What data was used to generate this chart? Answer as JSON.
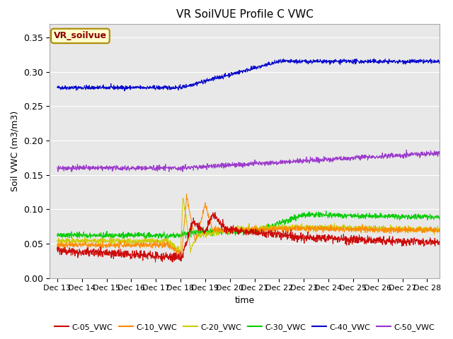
{
  "title": "VR SoilVUE Profile C VWC",
  "xlabel": "time",
  "ylabel": "Soil VWC (m3/m3)",
  "ylim": [
    0.0,
    0.37
  ],
  "yticks": [
    0.0,
    0.05,
    0.1,
    0.15,
    0.2,
    0.25,
    0.3,
    0.35
  ],
  "fig_bg_color": "#ffffff",
  "plot_bg_color": "#e8e8e8",
  "grid_color": "#ffffff",
  "legend_box_color": "#ffffcc",
  "legend_box_text": "VR_soilvue",
  "legend_box_text_color": "#8b0000",
  "legend_box_edge_color": "#aa8800",
  "series_colors": {
    "C-05_VWC": "#cc0000",
    "C-10_VWC": "#ff8800",
    "C-20_VWC": "#cccc00",
    "C-30_VWC": "#00cc00",
    "C-40_VWC": "#0000cc",
    "C-50_VWC": "#9933cc"
  },
  "xtick_labels": [
    "Dec 13",
    "Dec 14",
    "Dec 15",
    "Dec 16",
    "Dec 17",
    "Dec 18",
    "Dec 19",
    "Dec 20",
    "Dec 21",
    "Dec 22",
    "Dec 23",
    "Dec 24",
    "Dec 25",
    "Dec 26",
    "Dec 27",
    "Dec 28"
  ],
  "xtick_positions": [
    0,
    1,
    2,
    3,
    4,
    5,
    6,
    7,
    8,
    9,
    10,
    11,
    12,
    13,
    14,
    15
  ]
}
